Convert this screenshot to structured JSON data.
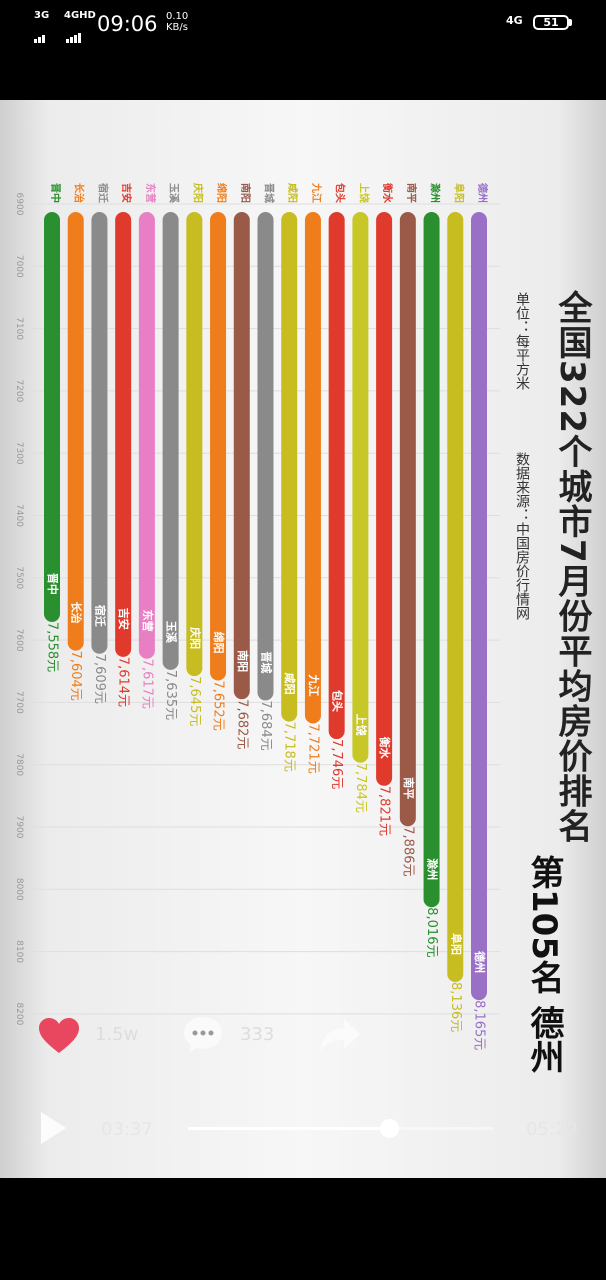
{
  "status_bar": {
    "network1": "3G",
    "network2": "4GHD",
    "time": "09:06",
    "speed_value": "0.10",
    "speed_unit": "KB/s",
    "network_right": "4G",
    "battery": "51"
  },
  "video": {
    "title": "全国322个城市7月份平均房价排名",
    "unit_text": "单位：每平方米",
    "source_text": "数据来源：中国房价行情网",
    "rank_text": "第105名  德州"
  },
  "chart_data": {
    "type": "bar",
    "orientation": "rotated",
    "x_axis_ticks": [
      6900,
      7000,
      7100,
      7200,
      7300,
      7400,
      7500,
      7600,
      7700,
      7800,
      7900,
      8000,
      8100,
      8200
    ],
    "xlim": [
      6900,
      8200
    ],
    "categories": [
      "德州",
      "阜阳",
      "滁州",
      "南平",
      "衡水",
      "上饶",
      "包头",
      "九江",
      "咸阳",
      "晋城",
      "南阳",
      "绵阳",
      "庆阳",
      "玉溪",
      "东营",
      "吉安",
      "宿迁",
      "长治",
      "晋中"
    ],
    "values": [
      8165,
      8136,
      8016,
      7886,
      7821,
      7784,
      7746,
      7721,
      7718,
      7684,
      7682,
      7652,
      7645,
      7635,
      7617,
      7614,
      7609,
      7604,
      7558
    ],
    "value_labels": [
      "8,165元",
      "8,136元",
      "8,016元",
      "7,886元",
      "7,821元",
      "7,784元",
      "7,746元",
      "7,721元",
      "7,718元",
      "7,684元",
      "7,682元",
      "7,652元",
      "7,645元",
      "7,635元",
      "7,617元",
      "7,614元",
      "7,609元",
      "7,604元",
      "7,558元"
    ],
    "colors": [
      "#9a6fc6",
      "#c7bd21",
      "#2a8f2e",
      "#9b5a48",
      "#e03a2c",
      "#c7c727",
      "#e03a2c",
      "#f07d1c",
      "#c7bd21",
      "#8a8a8a",
      "#9b5a48",
      "#f07d1c",
      "#c7bd21",
      "#8a8a8a",
      "#e87fc4",
      "#e03a2c",
      "#8a8a8a",
      "#f07d1c",
      "#2a8f2e"
    ],
    "grid": true
  },
  "controls": {
    "like_count": "1.5w",
    "comment_count": "333",
    "current_time": "03:37",
    "total_time": "05:29",
    "progress": 0.66,
    "icons": [
      "heart-icon",
      "comment-icon",
      "share-icon",
      "play-icon"
    ],
    "heart_color": "#e8475f"
  }
}
